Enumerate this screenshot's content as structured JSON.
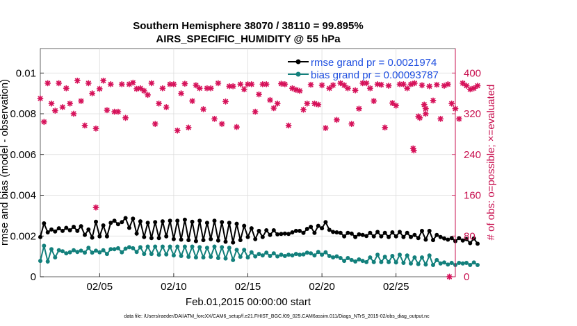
{
  "chart_data": {
    "type": "line",
    "title": "Southern Hemisphere 38070 / 38110 = 99.895%",
    "subtitle": "AIRS_SPECIFIC_HUMIDITY @ 55 hPa",
    "xlabel": "Feb.01,2015 00:00:00 start",
    "ylabel_left": "rmse and bias (model - observation)",
    "ylabel_right": "# of obs: o=possible; ×=evaluated",
    "footnote": "data file: /Users/raeder/DAI/ATM_forcXX/CAM6_setup/f.e21.FHIST_BGC.f09_025.CAM6assim.011/Diags_NTrS_2015-02/obs_diag_output.nc",
    "xlim": [
      1,
      29
    ],
    "ylim_left": [
      0,
      0.0112
    ],
    "ylim_right": [
      0,
      448
    ],
    "x_ticks": [
      5,
      10,
      15,
      20,
      25
    ],
    "x_tick_labels": [
      "02/05",
      "02/10",
      "02/15",
      "02/20",
      "02/25"
    ],
    "y_left_ticks": [
      0,
      0.002,
      0.004,
      0.006,
      0.008,
      0.01
    ],
    "y_left_tick_labels": [
      "0",
      "0.002",
      "0.004",
      "0.006",
      "0.008",
      "0.01"
    ],
    "y_right_ticks": [
      0,
      80,
      160,
      240,
      320,
      400
    ],
    "y_right_tick_labels": [
      "0",
      "80",
      "160",
      "240",
      "320",
      "400"
    ],
    "legend": [
      {
        "label": "rmse grand pr = 0.0021974",
        "color": "#000000"
      },
      {
        "label": "bias grand pr = 0.00093787",
        "color": "#13807c"
      }
    ],
    "colors": {
      "rmse": "#000000",
      "bias": "#13807c",
      "obs": "#d6125a",
      "right_axis": "#c8104f"
    },
    "x_start": 1.0,
    "x_step": 0.25,
    "series": [
      {
        "name": "rmse",
        "axis": "left",
        "values": [
          0.00195,
          0.00262,
          0.00218,
          0.00232,
          0.00222,
          0.00238,
          0.00225,
          0.0024,
          0.00228,
          0.00245,
          0.00225,
          0.00248,
          0.00205,
          0.00232,
          0.00192,
          0.0027,
          0.00198,
          0.00252,
          0.00198,
          0.00265,
          0.00275,
          0.00258,
          0.00268,
          0.00288,
          0.0024,
          0.00285,
          0.00212,
          0.00272,
          0.00195,
          0.00265,
          0.0019,
          0.00268,
          0.0019,
          0.00272,
          0.00198,
          0.00275,
          0.00185,
          0.00275,
          0.00182,
          0.0028,
          0.0018,
          0.0027,
          0.00175,
          0.00275,
          0.0018,
          0.00265,
          0.00185,
          0.00275,
          0.00178,
          0.00268,
          0.00172,
          0.00265,
          0.00168,
          0.0026,
          0.0018,
          0.0025,
          0.00195,
          0.00238,
          0.00185,
          0.00225,
          0.00195,
          0.00228,
          0.00205,
          0.00228,
          0.00208,
          0.0021,
          0.00212,
          0.0021,
          0.00218,
          0.00225,
          0.00225,
          0.00215,
          0.00235,
          0.00245,
          0.00215,
          0.0025,
          0.00238,
          0.00268,
          0.0023,
          0.0022,
          0.00218,
          0.00215,
          0.00198,
          0.00215,
          0.00212,
          0.00195,
          0.00208,
          0.00205,
          0.002,
          0.00215,
          0.00198,
          0.0022,
          0.00198,
          0.00215,
          0.00195,
          0.00218,
          0.00198,
          0.0022,
          0.00195,
          0.00215,
          0.00195,
          0.00205,
          0.0019,
          0.00225,
          0.00182,
          0.00225,
          0.0018,
          0.00205,
          0.00195,
          0.00188,
          0.00182,
          0.0019,
          0.00175,
          0.0019,
          0.00178,
          0.00185,
          0.00165,
          0.00188,
          0.00162
        ]
      },
      {
        "name": "bias",
        "axis": "left",
        "values": [
          0.00078,
          0.00152,
          0.00075,
          0.00135,
          0.00095,
          0.0013,
          0.00125,
          0.00115,
          0.0012,
          0.0013,
          0.00122,
          0.00128,
          0.00118,
          0.00142,
          0.00118,
          0.00128,
          0.0012,
          0.0013,
          0.00112,
          0.00135,
          0.00135,
          0.0014,
          0.0012,
          0.00138,
          0.00145,
          0.0014,
          0.00122,
          0.00145,
          0.00112,
          0.00148,
          0.00112,
          0.00148,
          0.00108,
          0.00148,
          0.0011,
          0.00148,
          0.00105,
          0.00148,
          0.00102,
          0.00148,
          0.00098,
          0.00148,
          0.00095,
          0.00145,
          0.00095,
          0.00142,
          0.00098,
          0.00148,
          0.00092,
          0.00145,
          0.0009,
          0.00142,
          0.00082,
          0.00132,
          0.00098,
          0.00132,
          0.00095,
          0.0012,
          0.001,
          0.00112,
          0.00105,
          0.00118,
          0.00102,
          0.00115,
          0.001,
          0.00108,
          0.00102,
          0.00108,
          0.00105,
          0.00112,
          0.00108,
          0.0011,
          0.00118,
          0.00115,
          0.00105,
          0.00122,
          0.00108,
          0.0012,
          0.00102,
          0.00095,
          0.001,
          0.00092,
          0.00078,
          0.00092,
          0.00082,
          0.00075,
          0.00085,
          0.00078,
          0.00072,
          0.00095,
          0.00072,
          0.00108,
          0.00072,
          0.00098,
          0.00072,
          0.00102,
          0.0007,
          0.00108,
          0.00068,
          0.00105,
          0.00065,
          0.00095,
          0.00062,
          0.00095,
          0.0006,
          0.00105,
          0.00058,
          0.00082,
          0.00065,
          0.0007,
          0.0006,
          0.00068,
          0.00058,
          0.00068,
          0.00065,
          0.00068,
          0.00058,
          0.0007,
          0.00058
        ]
      },
      {
        "name": "observations",
        "axis": "right",
        "values": [
          350,
          304,
          380,
          340,
          326,
          380,
          333,
          370,
          340,
          320,
          385,
          345,
          297,
          380,
          360,
          291,
          369,
          385,
          327,
          378,
          324,
          324,
          378,
          312,
          378,
          381,
          369,
          370,
          365,
          357,
          380,
          300,
          340,
          370,
          333,
          378,
          378,
          287,
          360,
          379,
          293,
          345,
          376,
          370,
          329,
          370,
          370,
          310,
          380,
          300,
          344,
          374,
          374,
          294,
          378,
          368,
          378,
          378,
          324,
          358,
          378,
          378,
          347,
          331,
          340,
          379,
          378,
          297,
          370,
          367,
          365,
          328,
          340,
          377,
          340,
          338,
          376,
          292,
          370,
          376,
          308,
          380,
          376,
          370,
          300,
          366,
          330,
          380,
          380,
          370,
          345,
          378,
          377,
          293,
          375,
          341,
          336,
          378,
          378,
          370,
          378,
          380,
          315,
          376,
          320,
          374,
          346,
          377,
          310,
          375,
          378,
          340,
          330,
          310,
          380,
          375,
          368,
          370,
          375
        ]
      },
      {
        "name": "outliers",
        "axis": "right",
        "x": [
          4.75,
          26.15,
          26.2,
          26.6,
          26.9,
          27.0,
          28.6
        ],
        "values": [
          136,
          252,
          248,
          312,
          338,
          330,
          0
        ]
      }
    ]
  }
}
